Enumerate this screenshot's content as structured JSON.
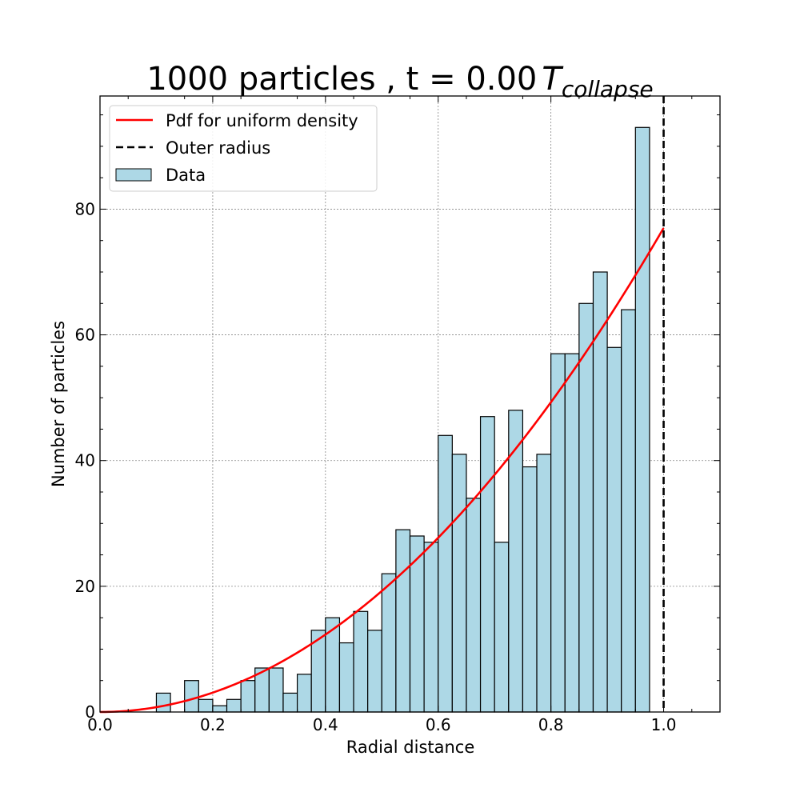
{
  "chart_data": {
    "type": "bar",
    "title_prefix": "1000 particles , t = 0.00",
    "title_symbol": "T",
    "title_subscript": "collapse",
    "xlabel": "Radial distance",
    "ylabel": "Number of particles",
    "xlim": [
      0.0,
      1.1
    ],
    "ylim": [
      0,
      98
    ],
    "xticks": [
      0.0,
      0.2,
      0.4,
      0.6,
      0.8,
      1.0
    ],
    "xtick_labels": [
      "0.0",
      "0.2",
      "0.4",
      "0.6",
      "0.8",
      "1.0"
    ],
    "yticks": [
      0,
      20,
      40,
      60,
      80
    ],
    "ytick_labels": [
      "0",
      "20",
      "40",
      "60",
      "80"
    ],
    "grid": true,
    "legend_position": "top-left",
    "legend": [
      {
        "label": "Pdf for uniform density",
        "style": "line",
        "color": "#ff0000"
      },
      {
        "label": "Outer radius",
        "style": "dashed",
        "color": "#000000"
      },
      {
        "label": "Data",
        "style": "patch",
        "color": "#add8e6"
      }
    ],
    "histogram": {
      "name": "Data",
      "color": "#add8e6",
      "edge_color": "#000000",
      "bin_start": 0.0,
      "bin_width": 0.025,
      "counts": [
        0,
        0,
        0,
        0,
        3,
        0,
        5,
        2,
        1,
        2,
        5,
        7,
        7,
        3,
        6,
        13,
        15,
        11,
        16,
        13,
        22,
        29,
        28,
        27,
        44,
        41,
        34,
        47,
        27,
        48,
        39,
        41,
        57,
        57,
        65,
        70,
        58,
        64,
        93
      ]
    },
    "pdf_curve": {
      "name": "Pdf for uniform density",
      "color": "#ff0000",
      "type": "quadratic",
      "coefficient": 77
    },
    "outer_radius": {
      "name": "Outer radius",
      "x": 1.0,
      "color": "#000000"
    }
  }
}
